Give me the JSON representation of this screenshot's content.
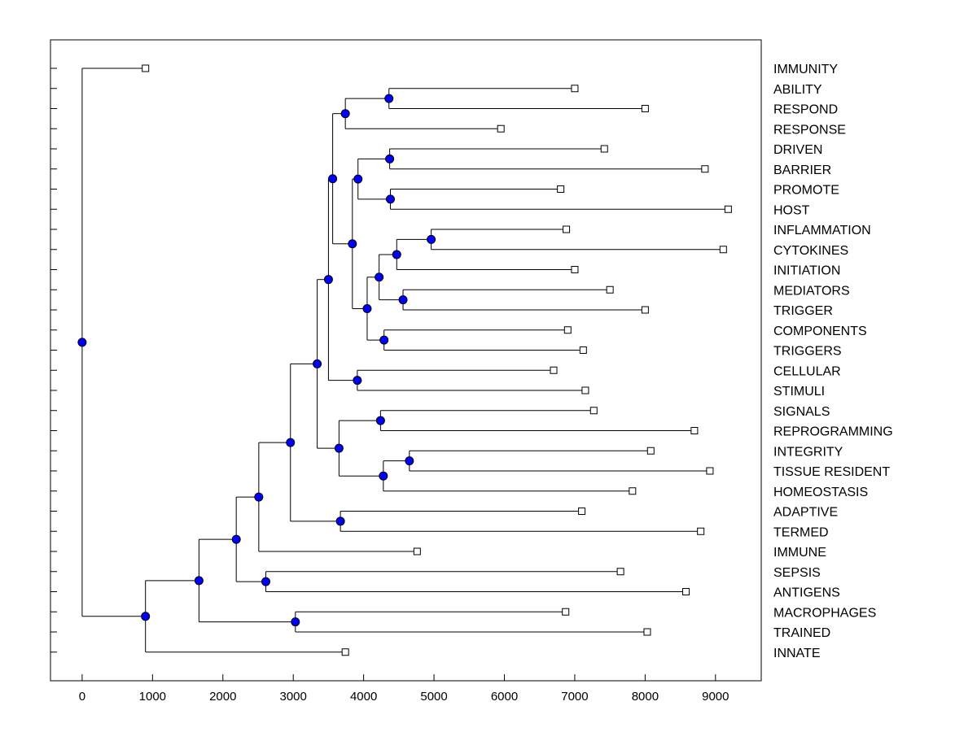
{
  "chart_data": {
    "type": "dendrogram",
    "title": "",
    "xlabel": "",
    "ylabel": "",
    "xlim": [
      -450,
      9650
    ],
    "x_ticks": [
      0,
      1000,
      2000,
      3000,
      4000,
      5000,
      6000,
      7000,
      8000,
      9000
    ],
    "grid": false,
    "colors": {
      "node_fill": "#0000ff",
      "line": "#000000",
      "leaf_fill": "#ffffff"
    },
    "leaves": [
      {
        "label": "IMMUNITY",
        "value": 900
      },
      {
        "label": "ABILITY",
        "value": 7000
      },
      {
        "label": "RESPOND",
        "value": 8000
      },
      {
        "label": "RESPONSE",
        "value": 5950
      },
      {
        "label": "DRIVEN",
        "value": 7420
      },
      {
        "label": "BARRIER",
        "value": 8850
      },
      {
        "label": "PROMOTE",
        "value": 6800
      },
      {
        "label": "HOST",
        "value": 9180
      },
      {
        "label": "INFLAMMATION",
        "value": 6880
      },
      {
        "label": "CYTOKINES",
        "value": 9110
      },
      {
        "label": "INITIATION",
        "value": 7000
      },
      {
        "label": "MEDIATORS",
        "value": 7500
      },
      {
        "label": "TRIGGER",
        "value": 8000
      },
      {
        "label": "COMPONENTS",
        "value": 6900
      },
      {
        "label": "TRIGGERS",
        "value": 7120
      },
      {
        "label": "CELLULAR",
        "value": 6700
      },
      {
        "label": "STIMULI",
        "value": 7150
      },
      {
        "label": "SIGNALS",
        "value": 7270
      },
      {
        "label": "REPROGRAMMING",
        "value": 8700
      },
      {
        "label": "INTEGRITY",
        "value": 8080
      },
      {
        "label": "TISSUE RESIDENT",
        "value": 8920
      },
      {
        "label": "HOMEOSTASIS",
        "value": 7820
      },
      {
        "label": "ADAPTIVE",
        "value": 7100
      },
      {
        "label": "TERMED",
        "value": 8790
      },
      {
        "label": "IMMUNE",
        "value": 4760
      },
      {
        "label": "SEPSIS",
        "value": 7650
      },
      {
        "label": "ANTIGENS",
        "value": 8580
      },
      {
        "label": "MACROPHAGES",
        "value": 6870
      },
      {
        "label": "TRAINED",
        "value": 8030
      },
      {
        "label": "INNATE",
        "value": 3740
      }
    ],
    "nodes": [
      {
        "id": "n1",
        "value": 4360,
        "children": [
          "L:ABILITY",
          "L:RESPOND"
        ]
      },
      {
        "id": "n2",
        "value": 3740,
        "children": [
          "N:n1",
          "L:RESPONSE"
        ]
      },
      {
        "id": "n3",
        "value": 4370,
        "children": [
          "L:DRIVEN",
          "L:BARRIER"
        ]
      },
      {
        "id": "n4",
        "value": 4380,
        "children": [
          "L:PROMOTE",
          "L:HOST"
        ]
      },
      {
        "id": "n5",
        "value": 3920,
        "children": [
          "N:n3",
          "N:n4"
        ]
      },
      {
        "id": "n6",
        "value": 4960,
        "children": [
          "L:INFLAMMATION",
          "L:CYTOKINES"
        ]
      },
      {
        "id": "n7",
        "value": 4470,
        "children": [
          "N:n6",
          "L:INITIATION"
        ]
      },
      {
        "id": "n8",
        "value": 4560,
        "children": [
          "L:MEDIATORS",
          "L:TRIGGER"
        ]
      },
      {
        "id": "n9",
        "value": 4220,
        "children": [
          "N:n7",
          "N:n8"
        ]
      },
      {
        "id": "n10",
        "value": 4290,
        "children": [
          "L:COMPONENTS",
          "L:TRIGGERS"
        ]
      },
      {
        "id": "n11",
        "value": 4050,
        "children": [
          "N:n9",
          "N:n10"
        ]
      },
      {
        "id": "n12",
        "value": 3840,
        "children": [
          "N:n5",
          "N:n11"
        ]
      },
      {
        "id": "n13",
        "value": 3560,
        "children": [
          "N:n2",
          "N:n12"
        ]
      },
      {
        "id": "n14",
        "value": 3910,
        "children": [
          "L:CELLULAR",
          "L:STIMULI"
        ]
      },
      {
        "id": "n15",
        "value": 3500,
        "children": [
          "N:n13",
          "N:n14"
        ]
      },
      {
        "id": "n16",
        "value": 4240,
        "children": [
          "L:SIGNALS",
          "L:REPROGRAMMING"
        ]
      },
      {
        "id": "n17",
        "value": 4650,
        "children": [
          "L:INTEGRITY",
          "L:TISSUE RESIDENT"
        ]
      },
      {
        "id": "n18",
        "value": 4280,
        "children": [
          "N:n17",
          "L:HOMEOSTASIS"
        ]
      },
      {
        "id": "n19",
        "value": 3650,
        "children": [
          "N:n16",
          "N:n18"
        ]
      },
      {
        "id": "n20",
        "value": 3340,
        "children": [
          "N:n15",
          "N:n19"
        ]
      },
      {
        "id": "n21",
        "value": 3670,
        "children": [
          "L:ADAPTIVE",
          "L:TERMED"
        ]
      },
      {
        "id": "n22",
        "value": 2960,
        "children": [
          "N:n20",
          "N:n21"
        ]
      },
      {
        "id": "n23",
        "value": 2510,
        "children": [
          "N:n22",
          "L:IMMUNE"
        ]
      },
      {
        "id": "n24",
        "value": 2610,
        "children": [
          "L:SEPSIS",
          "L:ANTIGENS"
        ]
      },
      {
        "id": "n25",
        "value": 2190,
        "children": [
          "N:n23",
          "N:n24"
        ]
      },
      {
        "id": "n26",
        "value": 3030,
        "children": [
          "L:MACROPHAGES",
          "L:TRAINED"
        ]
      },
      {
        "id": "n27",
        "value": 1660,
        "children": [
          "N:n25",
          "N:n26"
        ]
      },
      {
        "id": "n28",
        "value": 900,
        "children": [
          "N:n27",
          "L:INNATE"
        ]
      },
      {
        "id": "n29",
        "value": 0,
        "children": [
          "L:IMMUNITY",
          "N:n28"
        ]
      }
    ]
  }
}
